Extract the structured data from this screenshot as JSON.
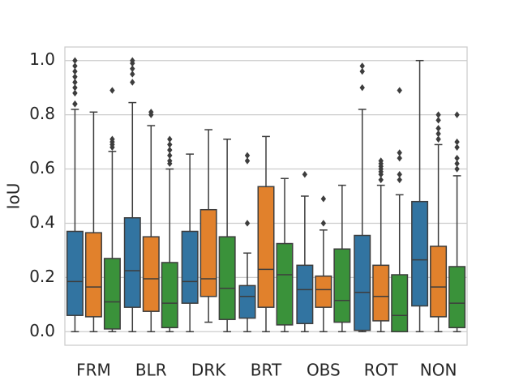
{
  "chart_data": {
    "type": "box",
    "title": "",
    "xlabel": "",
    "ylabel": "IoU",
    "ylim": [
      -0.05,
      1.05
    ],
    "yticks": [
      0.0,
      0.2,
      0.4,
      0.6,
      0.8,
      1.0
    ],
    "ytick_labels": [
      "0.0",
      "0.2",
      "0.4",
      "0.6",
      "0.8",
      "1.0"
    ],
    "grid": "horizontal",
    "legend": "none",
    "categories": [
      "FRM",
      "BLR",
      "DRK",
      "BRT",
      "OBS",
      "ROT",
      "NON"
    ],
    "series_colors": [
      "#3274a1",
      "#e1812c",
      "#3a923a"
    ],
    "boxes": [
      [
        {
          "whislo": 0.0,
          "q1": 0.06,
          "med": 0.185,
          "q3": 0.37,
          "whishi": 0.82,
          "fliers": [
            0.84,
            0.84,
            0.88,
            0.9,
            0.92,
            0.94,
            0.96,
            0.98,
            1.0
          ]
        },
        {
          "whislo": 0.0,
          "q1": 0.055,
          "med": 0.165,
          "q3": 0.365,
          "whishi": 0.81,
          "fliers": []
        },
        {
          "whislo": 0.0,
          "q1": 0.01,
          "med": 0.11,
          "q3": 0.27,
          "whishi": 0.665,
          "fliers": [
            0.68,
            0.69,
            0.7,
            0.71,
            0.89
          ]
        }
      ],
      [
        {
          "whislo": 0.0,
          "q1": 0.09,
          "med": 0.225,
          "q3": 0.42,
          "whishi": 0.845,
          "fliers": [
            0.92,
            0.95,
            0.97,
            0.99,
            1.0
          ]
        },
        {
          "whislo": 0.0,
          "q1": 0.075,
          "med": 0.195,
          "q3": 0.35,
          "whishi": 0.76,
          "fliers": [
            0.8,
            0.81
          ]
        },
        {
          "whislo": 0.0,
          "q1": 0.015,
          "med": 0.105,
          "q3": 0.255,
          "whishi": 0.6,
          "fliers": [
            0.62,
            0.63,
            0.65,
            0.67,
            0.69,
            0.71
          ]
        }
      ],
      [
        {
          "whislo": 0.0,
          "q1": 0.105,
          "med": 0.185,
          "q3": 0.37,
          "whishi": 0.655,
          "fliers": []
        },
        {
          "whislo": 0.035,
          "q1": 0.13,
          "med": 0.195,
          "q3": 0.45,
          "whishi": 0.745,
          "fliers": []
        },
        {
          "whislo": 0.0,
          "q1": 0.045,
          "med": 0.16,
          "q3": 0.35,
          "whishi": 0.71,
          "fliers": []
        }
      ],
      [
        {
          "whislo": 0.0,
          "q1": 0.05,
          "med": 0.13,
          "q3": 0.17,
          "whishi": 0.29,
          "fliers": [
            0.4,
            0.63,
            0.65
          ]
        },
        {
          "whislo": 0.0,
          "q1": 0.09,
          "med": 0.23,
          "q3": 0.535,
          "whishi": 0.72,
          "fliers": []
        },
        {
          "whislo": 0.0,
          "q1": 0.025,
          "med": 0.21,
          "q3": 0.325,
          "whishi": 0.565,
          "fliers": []
        }
      ],
      [
        {
          "whislo": 0.0,
          "q1": 0.03,
          "med": 0.155,
          "q3": 0.245,
          "whishi": 0.5,
          "fliers": [
            0.58
          ]
        },
        {
          "whislo": 0.0,
          "q1": 0.09,
          "med": 0.155,
          "q3": 0.205,
          "whishi": 0.375,
          "fliers": [
            0.4,
            0.49
          ]
        },
        {
          "whislo": 0.0,
          "q1": 0.035,
          "med": 0.115,
          "q3": 0.305,
          "whishi": 0.54,
          "fliers": []
        }
      ],
      [
        {
          "whislo": 0.0,
          "q1": 0.005,
          "med": 0.145,
          "q3": 0.355,
          "whishi": 0.82,
          "fliers": [
            0.9,
            0.96,
            0.98
          ]
        },
        {
          "whislo": 0.0,
          "q1": 0.04,
          "med": 0.13,
          "q3": 0.245,
          "whishi": 0.54,
          "fliers": [
            0.56,
            0.58,
            0.59,
            0.6,
            0.61,
            0.62,
            0.63
          ]
        },
        {
          "whislo": 0.0,
          "q1": 0.0,
          "med": 0.06,
          "q3": 0.21,
          "whishi": 0.505,
          "fliers": [
            0.56,
            0.58,
            0.64,
            0.66,
            0.89
          ]
        }
      ],
      [
        {
          "whislo": 0.0,
          "q1": 0.095,
          "med": 0.265,
          "q3": 0.48,
          "whishi": 1.0,
          "fliers": []
        },
        {
          "whislo": 0.0,
          "q1": 0.055,
          "med": 0.165,
          "q3": 0.315,
          "whishi": 0.69,
          "fliers": [
            0.71,
            0.73,
            0.75,
            0.78,
            0.8
          ]
        },
        {
          "whislo": 0.0,
          "q1": 0.015,
          "med": 0.105,
          "q3": 0.24,
          "whishi": 0.575,
          "fliers": [
            0.6,
            0.62,
            0.64,
            0.68,
            0.7,
            0.8
          ]
        }
      ]
    ]
  }
}
